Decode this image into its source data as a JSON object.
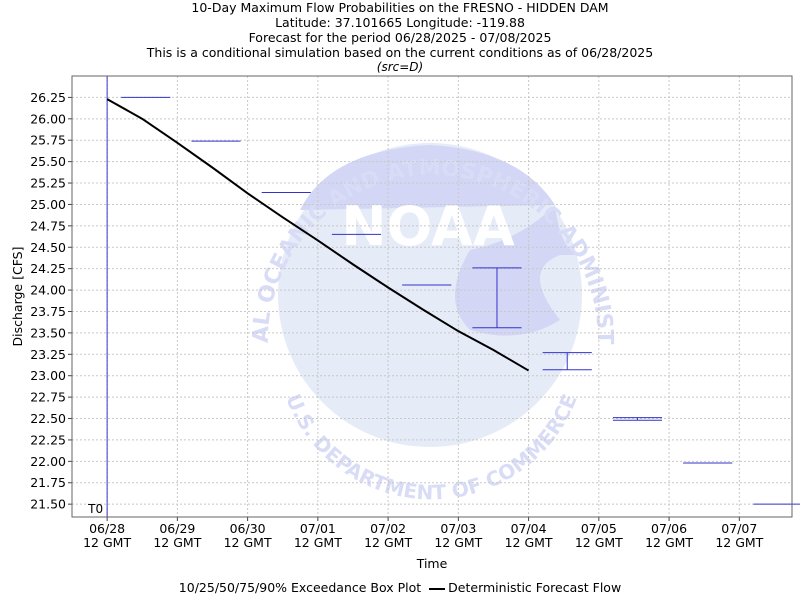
{
  "header": {
    "title": "10-Day Maximum Flow Probabilities on the FRESNO - HIDDEN DAM",
    "location": "Latitude: 37.101665 Longitude: -119.88",
    "period": "Forecast for the period 06/28/2025 - 07/08/2025",
    "note": "This is a conditional simulation based on the current conditions as of 06/28/2025",
    "source": "(src=D)"
  },
  "legend": {
    "boxplot_label": "10/25/50/75/90% Exceedance Box Plot",
    "line_label": "Deterministic Forecast Flow"
  },
  "watermark": {
    "logo_text": "NOAA",
    "top_arc_text": "NATIONAL OCEANIC AND ATMOSPHERIC ADMINISTRATION",
    "bottom_arc_text": "U.S. DEPARTMENT OF COMMERCE"
  },
  "colors": {
    "boxplot": "#3333cc",
    "deterministic_line": "#000000",
    "grid": "#c8c8c8",
    "t0_line": "#3333cc",
    "watermark": "#d9dcf6"
  },
  "chart_data": {
    "type": "line",
    "xlabel": "Time",
    "ylabel": "Discharge [CFS]",
    "x_ticks": [
      "06/28\n12 GMT",
      "06/29\n12 GMT",
      "06/30\n12 GMT",
      "07/01\n12 GMT",
      "07/02\n12 GMT",
      "07/03\n12 GMT",
      "07/04\n12 GMT",
      "07/05\n12 GMT",
      "07/06\n12 GMT",
      "07/07\n12 GMT"
    ],
    "xlim": [
      0,
      10.25
    ],
    "ylim": [
      21.35,
      26.5
    ],
    "y_ticks": [
      21.5,
      21.75,
      22.0,
      22.25,
      22.5,
      22.75,
      23.0,
      23.25,
      23.5,
      23.75,
      24.0,
      24.25,
      24.5,
      24.75,
      25.0,
      25.25,
      25.5,
      25.75,
      26.0,
      26.25
    ],
    "grid": true,
    "t0_label": "T0",
    "t0_x": 0.5,
    "series": [
      {
        "name": "Deterministic Forecast Flow",
        "kind": "line",
        "x": [
          0.5,
          1.0,
          1.5,
          2.0,
          2.5,
          3.0,
          3.5,
          4.0,
          4.5,
          5.0,
          5.5,
          6.0,
          6.5
        ],
        "y": [
          26.23,
          26.0,
          25.72,
          25.43,
          25.13,
          24.85,
          24.58,
          24.3,
          24.03,
          23.77,
          23.52,
          23.3,
          23.06
        ]
      },
      {
        "name": "10/25/50/75/90% Exceedance Box Plot",
        "kind": "boxplot",
        "boxes": [
          {
            "x_start": 0.7,
            "x_end": 1.4,
            "low": 26.25,
            "high": 26.25
          },
          {
            "x_start": 1.7,
            "x_end": 2.4,
            "low": 25.74,
            "high": 25.74
          },
          {
            "x_start": 2.7,
            "x_end": 3.4,
            "low": 25.14,
            "high": 25.14
          },
          {
            "x_start": 3.7,
            "x_end": 4.4,
            "low": 24.65,
            "high": 24.65
          },
          {
            "x_start": 4.7,
            "x_end": 5.4,
            "low": 24.06,
            "high": 24.06
          },
          {
            "x_start": 5.7,
            "x_end": 6.4,
            "low": 23.56,
            "high": 24.26
          },
          {
            "x_start": 6.7,
            "x_end": 7.4,
            "low": 23.07,
            "high": 23.27
          },
          {
            "x_start": 7.7,
            "x_end": 8.4,
            "low": 22.48,
            "high": 22.51
          },
          {
            "x_start": 8.7,
            "x_end": 9.4,
            "low": 21.98,
            "high": 21.98
          },
          {
            "x_start": 9.7,
            "x_end": 10.4,
            "low": 21.5,
            "high": 21.5
          }
        ]
      }
    ]
  }
}
